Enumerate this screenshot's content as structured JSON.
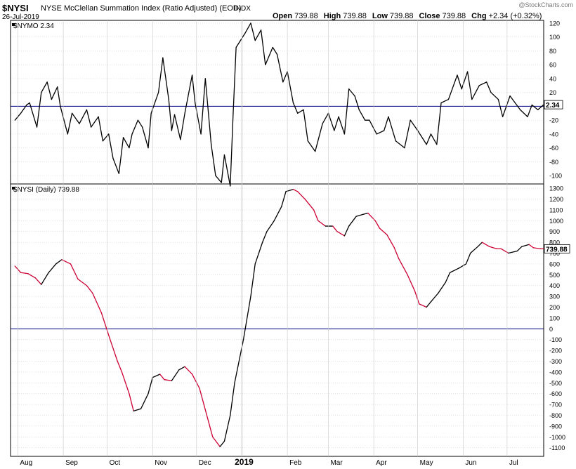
{
  "header": {
    "symbol": "$NYSI",
    "title": "NYSE McClellan Summation Index (Ratio Adjusted) (EOD)",
    "exchange": "INDX",
    "date": "26-Jul-2019",
    "watermark": "@StockCharts.com",
    "ohlc": [
      {
        "label": "Open",
        "value": "739.88"
      },
      {
        "label": "High",
        "value": "739.88"
      },
      {
        "label": "Low",
        "value": "739.88"
      },
      {
        "label": "Close",
        "value": "739.88"
      },
      {
        "label": "Chg",
        "value": "+2.34 (+0.32%)"
      }
    ]
  },
  "colors": {
    "rising": "#000000",
    "falling": "#cc0033",
    "zero_line": "#000080",
    "grid": "#c8c8c8",
    "frame": "#000000"
  },
  "chart_data": [
    {
      "type": "line",
      "panel_label": "$NYMO 2.34",
      "last_value_tag": "2.34",
      "ylim": [
        -112,
        124
      ],
      "y_ticks": [
        120,
        100,
        80,
        60,
        40,
        20,
        0,
        -20,
        -40,
        -60,
        -80,
        -100
      ],
      "zero_line": 0,
      "x": [
        "2018-07-30",
        "2018-08-03",
        "2018-08-07",
        "2018-08-09",
        "2018-08-14",
        "2018-08-17",
        "2018-08-21",
        "2018-08-24",
        "2018-08-28",
        "2018-08-30",
        "2018-09-04",
        "2018-09-07",
        "2018-09-12",
        "2018-09-17",
        "2018-09-20",
        "2018-09-25",
        "2018-09-28",
        "2018-10-02",
        "2018-10-05",
        "2018-10-09",
        "2018-10-12",
        "2018-10-16",
        "2018-10-18",
        "2018-10-22",
        "2018-10-25",
        "2018-10-29",
        "2018-10-31",
        "2018-11-05",
        "2018-11-08",
        "2018-11-12",
        "2018-11-14",
        "2018-11-16",
        "2018-11-20",
        "2018-11-23",
        "2018-11-28",
        "2018-11-30",
        "2018-12-04",
        "2018-12-07",
        "2018-12-11",
        "2018-12-14",
        "2018-12-18",
        "2018-12-20",
        "2018-12-24",
        "2018-12-26",
        "2018-12-28",
        "2019-01-03",
        "2019-01-07",
        "2019-01-10",
        "2019-01-14",
        "2019-01-17",
        "2019-01-22",
        "2019-01-25",
        "2019-01-29",
        "2019-02-01",
        "2019-02-05",
        "2019-02-08",
        "2019-02-12",
        "2019-02-15",
        "2019-02-20",
        "2019-02-25",
        "2019-03-01",
        "2019-03-05",
        "2019-03-08",
        "2019-03-12",
        "2019-03-15",
        "2019-03-19",
        "2019-03-22",
        "2019-03-26",
        "2019-03-29",
        "2019-04-03",
        "2019-04-08",
        "2019-04-11",
        "2019-04-16",
        "2019-04-22",
        "2019-04-26",
        "2019-05-01",
        "2019-05-07",
        "2019-05-10",
        "2019-05-14",
        "2019-05-17",
        "2019-05-22",
        "2019-05-28",
        "2019-05-31",
        "2019-06-04",
        "2019-06-07",
        "2019-06-12",
        "2019-06-17",
        "2019-06-20",
        "2019-06-25",
        "2019-06-28",
        "2019-07-03",
        "2019-07-10",
        "2019-07-15",
        "2019-07-18",
        "2019-07-22",
        "2019-07-26"
      ],
      "values": [
        -20,
        -10,
        2,
        5,
        -30,
        20,
        35,
        10,
        28,
        0,
        -40,
        -10,
        -25,
        -5,
        -30,
        -15,
        -50,
        -40,
        -75,
        -97,
        -45,
        -60,
        -40,
        -20,
        -30,
        -60,
        -10,
        20,
        70,
        10,
        -35,
        -12,
        -48,
        -10,
        45,
        5,
        -40,
        40,
        -55,
        -100,
        -110,
        -70,
        -115,
        -10,
        85,
        105,
        120,
        95,
        110,
        60,
        85,
        75,
        35,
        50,
        5,
        -10,
        -5,
        -50,
        -65,
        -25,
        -10,
        -35,
        -15,
        -40,
        25,
        15,
        -5,
        -20,
        -20,
        -40,
        -35,
        -15,
        -50,
        -60,
        -20,
        -35,
        -55,
        -40,
        -55,
        5,
        10,
        45,
        25,
        50,
        10,
        30,
        35,
        20,
        10,
        -15,
        15,
        -5,
        -15,
        2,
        -5,
        2.34
      ]
    },
    {
      "type": "line",
      "panel_label": "$NYSI (Daily) 739.88",
      "last_value_tag": "739.88",
      "ylim": [
        -1180,
        1340
      ],
      "y_ticks": [
        1300,
        1200,
        1100,
        1000,
        900,
        800,
        700,
        600,
        500,
        400,
        300,
        200,
        100,
        0,
        -100,
        -200,
        -300,
        -400,
        -500,
        -600,
        -700,
        -800,
        -900,
        -1000,
        -1100
      ],
      "zero_line": 0,
      "x": [
        "2018-07-30",
        "2018-08-03",
        "2018-08-08",
        "2018-08-13",
        "2018-08-17",
        "2018-08-22",
        "2018-08-27",
        "2018-08-31",
        "2018-09-06",
        "2018-09-11",
        "2018-09-17",
        "2018-09-21",
        "2018-09-27",
        "2018-10-03",
        "2018-10-08",
        "2018-10-11",
        "2018-10-16",
        "2018-10-19",
        "2018-10-24",
        "2018-10-29",
        "2018-11-01",
        "2018-11-06",
        "2018-11-09",
        "2018-11-14",
        "2018-11-19",
        "2018-11-23",
        "2018-11-28",
        "2018-12-03",
        "2018-12-07",
        "2018-12-12",
        "2018-12-17",
        "2018-12-20",
        "2018-12-24",
        "2018-12-27",
        "2019-01-02",
        "2019-01-07",
        "2019-01-10",
        "2019-01-15",
        "2019-01-18",
        "2019-01-23",
        "2019-01-28",
        "2019-01-31",
        "2019-02-05",
        "2019-02-08",
        "2019-02-13",
        "2019-02-19",
        "2019-02-22",
        "2019-02-27",
        "2019-03-04",
        "2019-03-07",
        "2019-03-12",
        "2019-03-15",
        "2019-03-20",
        "2019-03-25",
        "2019-03-28",
        "2019-04-02",
        "2019-04-05",
        "2019-04-10",
        "2019-04-15",
        "2019-04-18",
        "2019-04-24",
        "2019-04-29",
        "2019-05-02",
        "2019-05-07",
        "2019-05-10",
        "2019-05-15",
        "2019-05-20",
        "2019-05-23",
        "2019-05-29",
        "2019-06-03",
        "2019-06-06",
        "2019-06-11",
        "2019-06-14",
        "2019-06-19",
        "2019-06-24",
        "2019-06-27",
        "2019-07-02",
        "2019-07-08",
        "2019-07-11",
        "2019-07-16",
        "2019-07-19",
        "2019-07-24",
        "2019-07-26"
      ],
      "values": [
        580,
        520,
        510,
        470,
        410,
        520,
        600,
        640,
        600,
        460,
        400,
        330,
        150,
        -100,
        -300,
        -400,
        -600,
        -760,
        -740,
        -600,
        -450,
        -420,
        -470,
        -480,
        -380,
        -350,
        -420,
        -550,
        -750,
        -1000,
        -1090,
        -1040,
        -800,
        -500,
        -100,
        300,
        600,
        800,
        900,
        1000,
        1130,
        1270,
        1290,
        1270,
        1200,
        1100,
        1000,
        950,
        950,
        900,
        860,
        950,
        1040,
        1060,
        1070,
        1000,
        930,
        870,
        750,
        650,
        500,
        350,
        230,
        200,
        250,
        330,
        430,
        520,
        560,
        600,
        700,
        760,
        800,
        760,
        740,
        739.88,
        700,
        720,
        760,
        780,
        750,
        740,
        739.88
      ]
    }
  ],
  "x_axis": {
    "labels": [
      "Aug",
      "Sep",
      "Oct",
      "Nov",
      "Dec",
      "2019",
      "Feb",
      "Mar",
      "Apr",
      "May",
      "Jun",
      "Jul"
    ]
  }
}
